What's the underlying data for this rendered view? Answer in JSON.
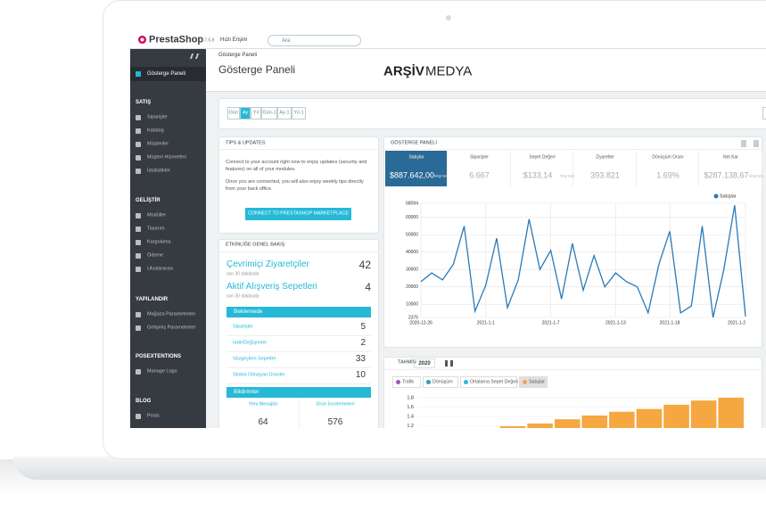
{
  "header": {
    "logo": "PrestaShop",
    "version": "1.7.6.8",
    "quick_access": "Hızlı Erişim",
    "search": "Ara"
  },
  "sidebar": {
    "dashboard": "Gösterge Paneli",
    "sections": [
      {
        "title": "SATIŞ",
        "items": [
          "Siparişler",
          "Katalog",
          "Müşteriler",
          "Müşteri Hizmetleri",
          "İstatistikler"
        ]
      },
      {
        "title": "GELİŞTİR",
        "items": [
          "Modüller",
          "Tasarım",
          "Kargolama",
          "Ödeme",
          "Uluslararası"
        ]
      },
      {
        "title": "YAPILANDIR",
        "items": [
          "Mağaza Parametreleri",
          "Gelişmiş Parametreler"
        ]
      },
      {
        "title": "POSEXTENTIONS",
        "items": [
          "Manage Logo"
        ]
      },
      {
        "title": "BLOG",
        "items": [
          "Posts"
        ]
      }
    ]
  },
  "page": {
    "breadcrumb": "Gösterge Paneli",
    "title": "Gösterge Paneli",
    "watermark": [
      "ARŞİV",
      "MEDYA"
    ]
  },
  "periods": {
    "buttons": [
      "Gün",
      "Ay",
      "Yıl",
      "Gün-1",
      "Ay-1",
      "Yıl-1"
    ],
    "active": 1
  },
  "tips": {
    "title": "TIPS & UPDATES",
    "paragraphs": [
      "Connect to your account right now to enjoy updates (security and features) on all of your modules.",
      "Once you are connected, you will also enjoy weekly tips directly from your back office."
    ],
    "button": "CONNECT TO PRESTASHOP MARKETPLACE"
  },
  "activity": {
    "title": "ETKİNLİĞE GENEL BAKIŞ",
    "live": [
      {
        "label": "Çevrimiçi Ziyaretçiler",
        "value": 42,
        "note": "son 30 dakikada"
      },
      {
        "label": "Aktif Alışveriş Sepetleri",
        "value": 4,
        "note": "son 30 dakikada"
      }
    ],
    "pending": {
      "title": "Beklemede",
      "rows": [
        {
          "label": "Siparişler",
          "value": 5
        },
        {
          "label": "İade/Değişimler",
          "value": 2
        },
        {
          "label": "Vazgeçilen Sepetler",
          "value": 33
        },
        {
          "label": "Stokta Olmayan Ürünler",
          "value": 10
        }
      ]
    },
    "notifications": {
      "title": "Bildirimler",
      "columns": [
        {
          "label": "Yeni Mesajlar",
          "value": 64
        },
        {
          "label": "Ürün İncelemeleri",
          "value": 576
        }
      ]
    }
  },
  "dashboard": {
    "title": "GÖSTERGE PANELİ",
    "active": 0,
    "kpis": [
      {
        "label": "Satışlar",
        "value": "$887.642,00",
        "note": "Vergi hariç"
      },
      {
        "label": "Siparişler",
        "value": "6.667"
      },
      {
        "label": "Sepet Değeri",
        "value": "$133,14",
        "note": "Vergi hariç"
      },
      {
        "label": "Ziyaretler",
        "value": "393.821"
      },
      {
        "label": "Dönüşüm Oranı",
        "value": "1.69%"
      },
      {
        "label": "Net Kar",
        "value": "$287.138,67",
        "note": "Vergi hariç"
      }
    ]
  },
  "forecast": {
    "title": "TAHMİN",
    "year": "2020",
    "legend": [
      {
        "name": "Trafik",
        "color": "#9b59b6"
      },
      {
        "name": "Dönüşüm",
        "color": "#2d9fb5"
      },
      {
        "name": "Ortalama Sepet Değeri",
        "color": "#25b9d7"
      },
      {
        "name": "Satışlar",
        "color": "#f0a150",
        "active": true
      }
    ]
  },
  "chart_data": [
    {
      "type": "line",
      "categories": [
        "2020-12-26",
        null,
        null,
        null,
        null,
        null,
        "2021-1-1",
        null,
        null,
        null,
        null,
        null,
        "2021-1-7",
        null,
        null,
        null,
        null,
        null,
        "2021-1-13",
        null,
        null,
        null,
        null,
        "2021-1-18",
        null,
        null,
        null,
        null,
        null,
        null,
        "2021-1-2"
      ],
      "series": [
        {
          "name": "Satışlar",
          "color": "#2a7ab8",
          "values": [
            23000,
            28000,
            24000,
            33000,
            55000,
            6000,
            21000,
            48000,
            8000,
            24000,
            59000,
            30000,
            41000,
            13000,
            45000,
            18000,
            38000,
            20000,
            28000,
            23000,
            20000,
            5000,
            33000,
            52000,
            5000,
            9000,
            55000,
            2376,
            30000,
            67000,
            3000
          ]
        }
      ],
      "ylim": [
        2376,
        68094
      ],
      "yticks": [
        2376,
        10000,
        20000,
        30000,
        40000,
        50000,
        60000,
        68094
      ],
      "grid": true,
      "legend": "top-right"
    },
    {
      "type": "bar",
      "categories": [
        null,
        null,
        null,
        null,
        null,
        null,
        null,
        null,
        null,
        null,
        null,
        null
      ],
      "values": [
        1.02,
        1.06,
        1.12,
        1.19,
        1.25,
        1.34,
        1.42,
        1.5,
        1.56,
        1.65,
        1.74,
        1.8
      ],
      "color": "#f5a742",
      "ylim": [
        1,
        1.8
      ],
      "yticks": [
        1.8,
        1.6,
        1.4,
        1.2,
        {
          "value": 1,
          "label": "1.0"
        }
      ],
      "grid": true
    }
  ]
}
